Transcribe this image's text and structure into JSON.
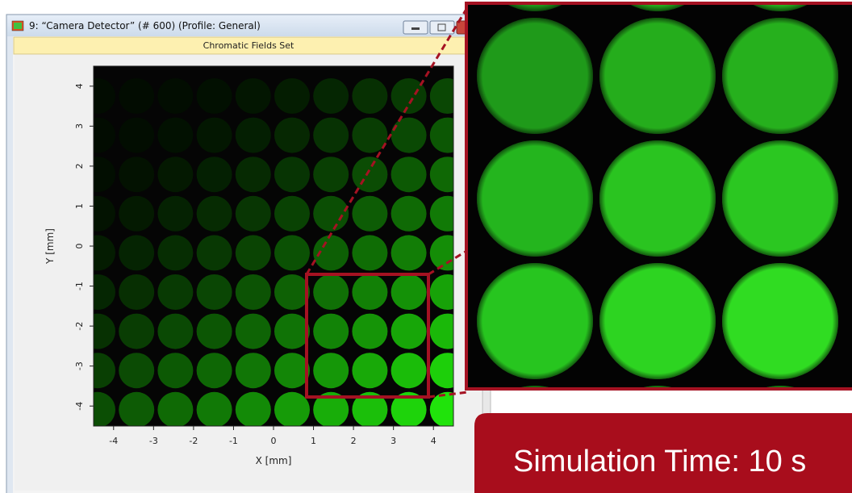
{
  "window": {
    "title": "9: “Camera Detector” (# 600) (Profile: General)"
  },
  "panel": {
    "title": "Chromatic Fields Set"
  },
  "plot": {
    "x_label": "X [mm]",
    "y_label": "Y [mm]",
    "xlim": [
      -4.5,
      4.5
    ],
    "ylim": [
      -4.5,
      4.5
    ],
    "xticks": [
      -4,
      -3,
      -2,
      -1,
      0,
      1,
      2,
      3,
      4
    ],
    "yticks": [
      -4,
      -3,
      -2,
      -1,
      0,
      1,
      2,
      3,
      4
    ]
  },
  "banner": {
    "text": "Simulation Time: 10 s"
  }
}
